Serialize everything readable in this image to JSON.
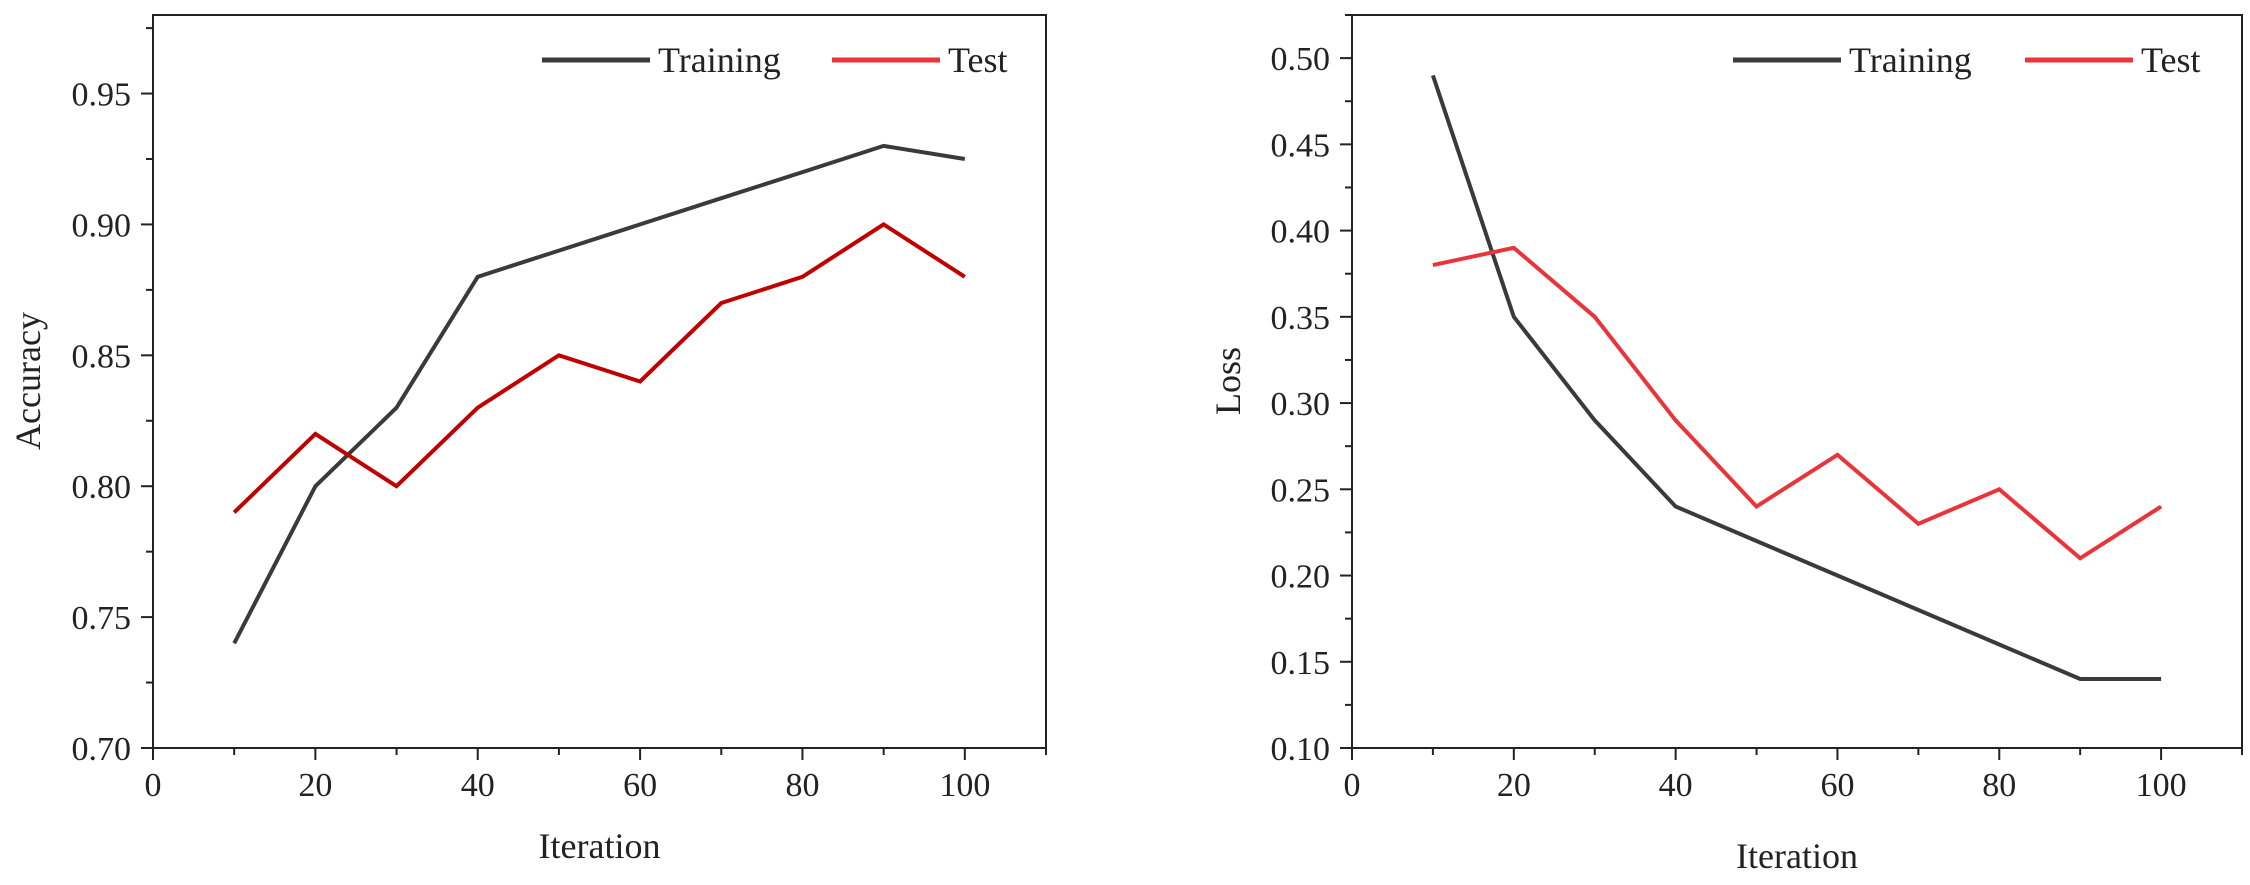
{
  "chart_data": [
    {
      "type": "line",
      "title": "",
      "xlabel": "Iteration",
      "ylabel": "Accuracy",
      "xlim": [
        0,
        110
      ],
      "ylim": [
        0.7,
        0.98
      ],
      "xticks": [
        0,
        20,
        40,
        60,
        80,
        100
      ],
      "yticks": [
        0.7,
        0.75,
        0.8,
        0.85,
        0.9,
        0.95
      ],
      "ytick_labels": [
        "0.70",
        "0.75",
        "0.80",
        "0.85",
        "0.90",
        "0.95"
      ],
      "x": [
        10,
        20,
        30,
        40,
        50,
        60,
        70,
        80,
        90,
        100
      ],
      "legend_position": "top-right",
      "grid": false,
      "series": [
        {
          "name": "Training",
          "color": "#3a3a3a",
          "values": [
            0.74,
            0.8,
            0.83,
            0.88,
            0.89,
            0.9,
            0.91,
            0.92,
            0.93,
            0.925
          ]
        },
        {
          "name": "Test",
          "color": "#c00000",
          "legend_color": "#e8353a",
          "values": [
            0.79,
            0.82,
            0.8,
            0.83,
            0.85,
            0.84,
            0.87,
            0.88,
            0.9,
            0.88
          ]
        }
      ]
    },
    {
      "type": "line",
      "title": "",
      "xlabel": "Iteration",
      "ylabel": "Loss",
      "xlim": [
        0,
        110
      ],
      "ylim": [
        0.1,
        0.525
      ],
      "xticks": [
        0,
        20,
        40,
        60,
        80,
        100
      ],
      "yticks": [
        0.1,
        0.15,
        0.2,
        0.25,
        0.3,
        0.35,
        0.4,
        0.45,
        0.5
      ],
      "ytick_labels": [
        "0.10",
        "0.15",
        "0.20",
        "0.25",
        "0.30",
        "0.35",
        "0.40",
        "0.45",
        "0.50"
      ],
      "x": [
        10,
        20,
        30,
        40,
        50,
        60,
        70,
        80,
        90,
        100
      ],
      "legend_position": "top-right",
      "grid": false,
      "series": [
        {
          "name": "Training",
          "color": "#3a3a3a",
          "values": [
            0.49,
            0.35,
            0.29,
            0.24,
            0.22,
            0.2,
            0.18,
            0.16,
            0.14,
            0.14
          ]
        },
        {
          "name": "Test",
          "color": "#e8353a",
          "legend_color": "#e8353a",
          "values": [
            0.38,
            0.39,
            0.35,
            0.29,
            0.24,
            0.27,
            0.23,
            0.25,
            0.21,
            0.24
          ]
        }
      ]
    }
  ]
}
